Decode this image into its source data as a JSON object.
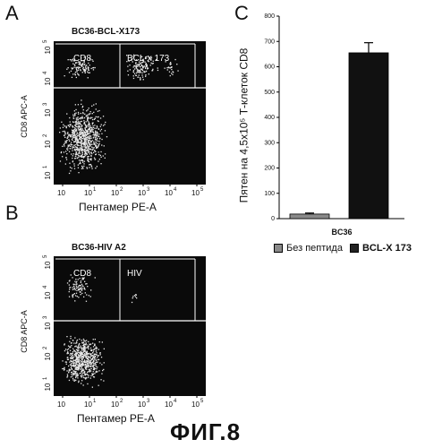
{
  "panel_a": {
    "letter": "A",
    "title": "BC36-BCL-X173",
    "gate_left": "CD8",
    "gate_right": "BCL-x 173",
    "y_title": "CD8 APC-A",
    "x_title": "Пентамер PE-A",
    "x_ticks": [
      "10",
      "10",
      "10",
      "10",
      "10",
      "10"
    ],
    "x_exps": [
      "1",
      "2",
      "3",
      "4",
      "5"
    ],
    "y_ticks": [
      "10",
      "10",
      "10",
      "10",
      "10"
    ],
    "y_exps": [
      "5",
      "4",
      "3",
      "2",
      "1"
    ]
  },
  "panel_b": {
    "letter": "B",
    "title": "BC36-HIV A2",
    "gate_left": "CD8",
    "gate_right": "HIV",
    "y_title": "CD8 APC-A",
    "x_title": "Пентамер PE-A",
    "x_ticks": [
      "10",
      "10",
      "10",
      "10",
      "10",
      "10"
    ],
    "x_exps": [
      "1",
      "2",
      "3",
      "4",
      "5"
    ],
    "y_ticks": [
      "10",
      "10",
      "10",
      "10",
      "10"
    ],
    "y_exps": [
      "5",
      "4",
      "3",
      "2",
      "1"
    ]
  },
  "panel_c": {
    "letter": "C",
    "legend": [
      "Без пептида",
      "BCL-X 173"
    ]
  },
  "chart_data": {
    "type": "bar",
    "categories": [
      "BC36"
    ],
    "series": [
      {
        "name": "Без пептида",
        "values": [
          18
        ],
        "error": [
          4
        ]
      },
      {
        "name": "BCL-X 173",
        "values": [
          655
        ],
        "error": [
          40
        ]
      }
    ],
    "ylabel": "Пятен на 4,5x10⁵ Т-клеток CD8",
    "ylim": [
      0,
      800
    ],
    "yticks": [
      "0",
      "100",
      "200",
      "300",
      "400",
      "500",
      "600",
      "700",
      "800"
    ],
    "colors": {
      "Без пептида": "#8a8a8a",
      "BCL-X 173": "#111111"
    }
  },
  "figure_label": "ФИГ.8"
}
